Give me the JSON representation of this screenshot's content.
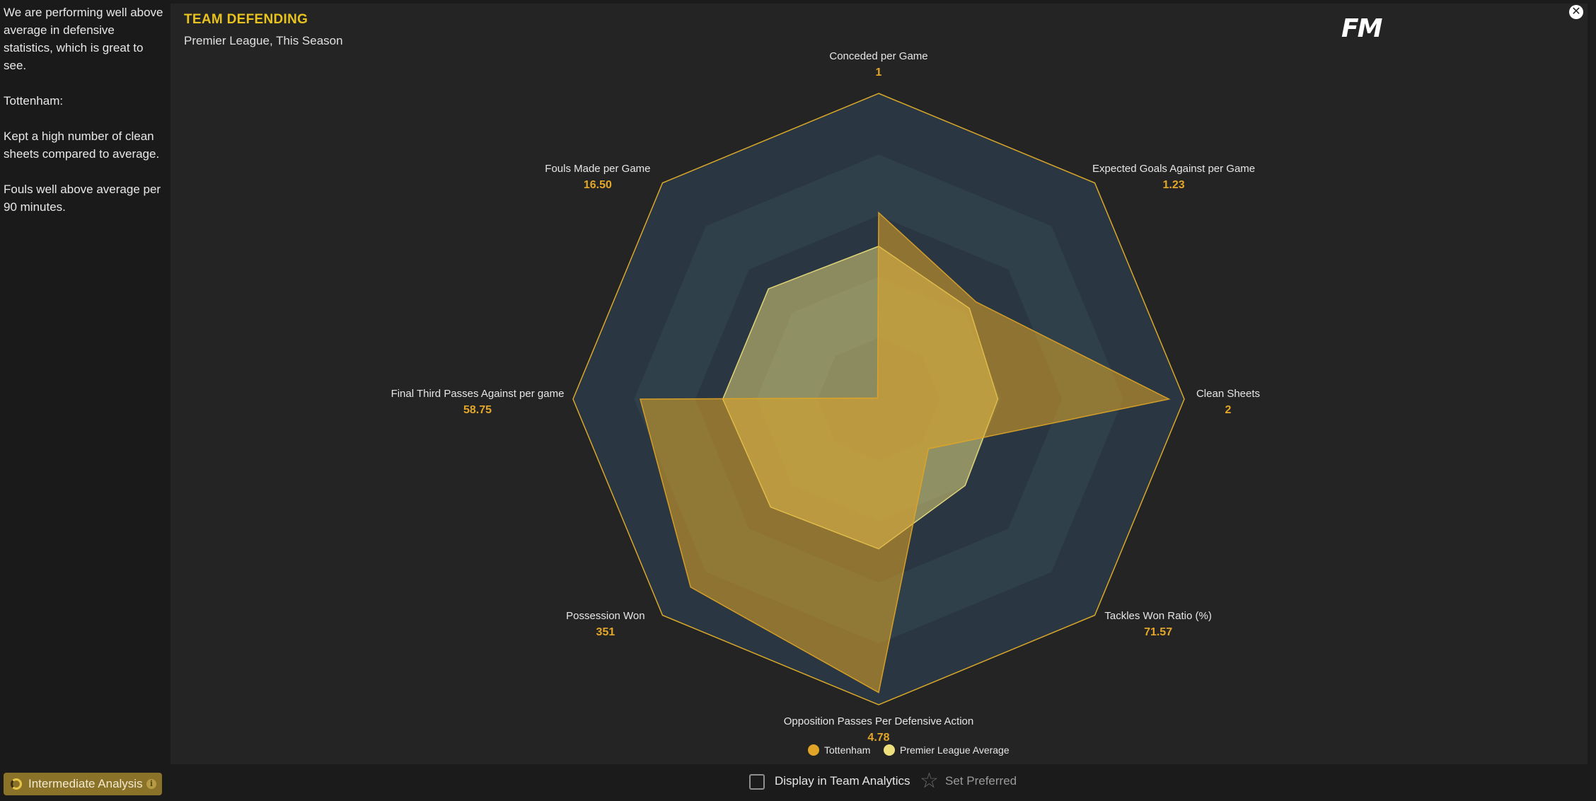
{
  "sidebar": {
    "insight_paragraphs": [
      "We are performing well above average in defensive statistics, which is great to see.",
      "Tottenham:",
      "Kept a high number of clean sheets compared to average.",
      "Fouls well above average per 90 minutes."
    ],
    "analysis_level": "Intermediate Analysis",
    "info_icon": "info-icon"
  },
  "panel": {
    "title": "TEAM DEFENDING",
    "subtitle": "Premier League, This Season",
    "logo_text": "FM",
    "close_icon": "close-icon"
  },
  "chart_data": {
    "type": "radar",
    "axes": [
      {
        "label": "Conceded per Game",
        "value": "1"
      },
      {
        "label": "Expected Goals Against per Game",
        "value": "1.23"
      },
      {
        "label": "Clean Sheets",
        "value": "2"
      },
      {
        "label": "Tackles Won Ratio (%)",
        "value": "71.57"
      },
      {
        "label": "Opposition Passes Per Defensive Action",
        "value": "4.78"
      },
      {
        "label": "Possession Won",
        "value": "351"
      },
      {
        "label": "Final Third Passes Against per game",
        "value": "58.75"
      },
      {
        "label": "Fouls Made per Game",
        "value": "16.50"
      }
    ],
    "scale": [
      0,
      1
    ],
    "series": [
      {
        "name": "Tottenham",
        "color": "#e0a526",
        "values": [
          0.61,
          0.45,
          0.95,
          0.23,
          0.96,
          0.87,
          0.78,
          0.0
        ]
      },
      {
        "name": "Premier League Average",
        "color": "#ede07c",
        "values": [
          0.5,
          0.42,
          0.39,
          0.4,
          0.49,
          0.5,
          0.51,
          0.51
        ]
      }
    ],
    "legend_position": "bottom"
  },
  "footer": {
    "display_label": "Display in Team Analytics",
    "preferred_label": "Set Preferred",
    "star_icon": "star-icon"
  },
  "colors": {
    "accent": "#e8c21e",
    "value_text": "#e3a628",
    "background": "#242424"
  }
}
